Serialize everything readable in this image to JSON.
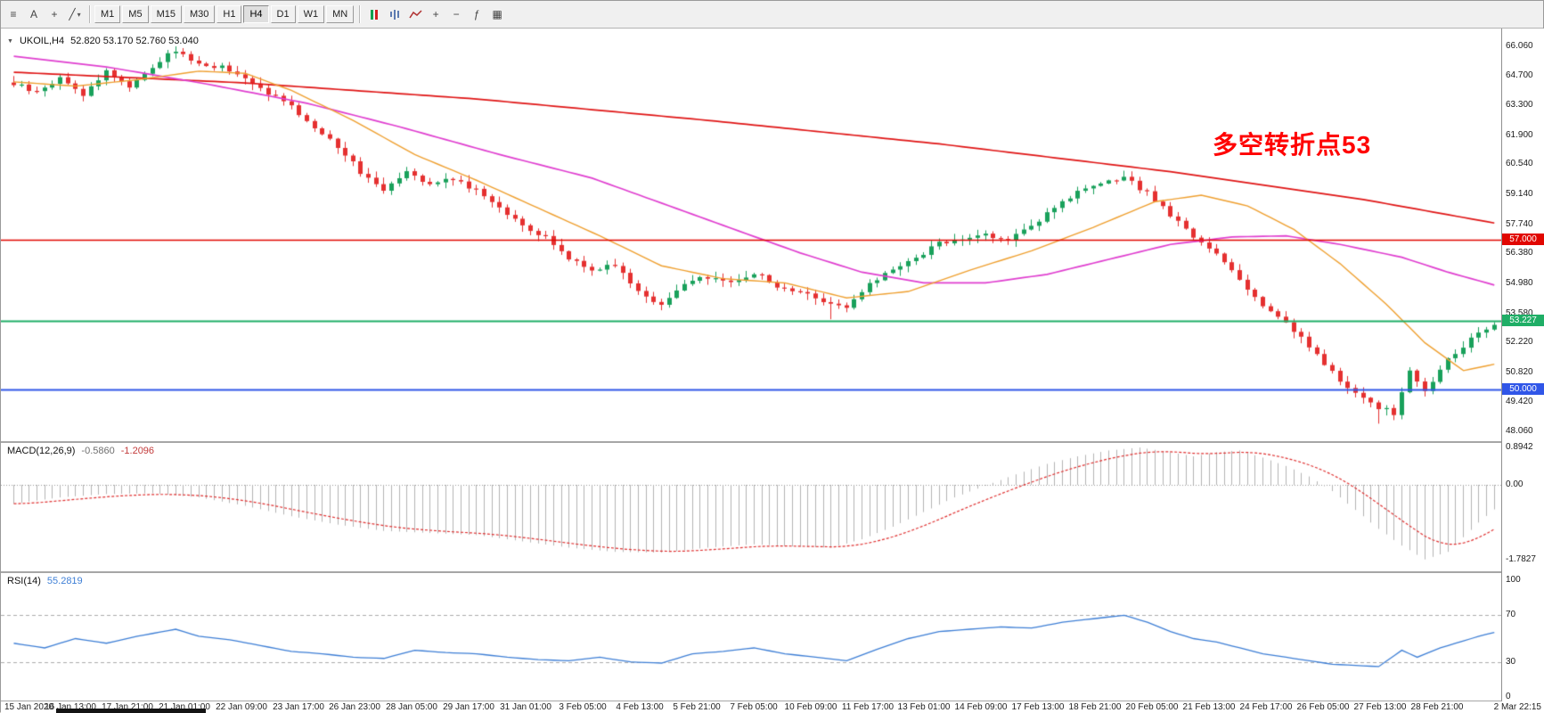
{
  "toolbar": {
    "left_icons": [
      {
        "name": "menu-grid-icon",
        "glyph": "≡"
      },
      {
        "name": "text-tool-button",
        "glyph": "A"
      },
      {
        "name": "crosshair-tool-button",
        "glyph": "+"
      },
      {
        "name": "draw-tools-button",
        "glyph": "╱",
        "caret": "▾"
      }
    ],
    "timeframes": [
      "M1",
      "M5",
      "M15",
      "M30",
      "H1",
      "H4",
      "D1",
      "W1",
      "MN"
    ],
    "active_timeframe": "H4",
    "right_icons": [
      {
        "name": "candles-chart-icon",
        "shape": "candles"
      },
      {
        "name": "bar-chart-icon",
        "shape": "bars"
      },
      {
        "name": "line-chart-icon",
        "shape": "line"
      },
      {
        "name": "zoom-in-icon",
        "glyph": "+"
      },
      {
        "name": "zoom-out-icon",
        "glyph": "−"
      },
      {
        "name": "indicators-icon",
        "glyph": "ƒ"
      },
      {
        "name": "grid-icon",
        "glyph": "▦"
      }
    ]
  },
  "chart": {
    "symbol_period": "UKOIL,H4",
    "ohlc": "52.820 53.170 52.760 53.040",
    "collapse_glyph": "▼",
    "annotation": "多空转折点53"
  },
  "indicators": {
    "macd_label": "MACD(12,26,9)",
    "macd_main_value": "-0.5860",
    "macd_signal_value": "-1.2096",
    "rsi_label": "RSI(14)",
    "rsi_value": "55.2819"
  },
  "axes": {
    "price_labels": [
      "66.060",
      "64.700",
      "63.300",
      "61.900",
      "60.540",
      "59.140",
      "57.740",
      "56.380",
      "54.980",
      "53.580",
      "52.220",
      "50.820",
      "49.420",
      "48.060"
    ],
    "macd_labels": [
      "0.8942",
      "0.00",
      "-1.7827"
    ],
    "rsi_labels": [
      "100",
      "70",
      "30",
      "0"
    ],
    "time_labels": [
      "15 Jan 2020",
      "16 Jan 13:00",
      "17 Jan 21:00",
      "21 Jan 01:00",
      "22 Jan 09:00",
      "23 Jan 17:00",
      "26 Jan 23:00",
      "28 Jan 05:00",
      "29 Jan 17:00",
      "31 Jan 01:00",
      "3 Feb 05:00",
      "4 Feb 13:00",
      "5 Feb 21:00",
      "7 Feb 05:00",
      "10 Feb 09:00",
      "11 Feb 17:00",
      "13 Feb 01:00",
      "14 Feb 09:00",
      "17 Feb 13:00",
      "18 Feb 21:00",
      "20 Feb 05:00",
      "21 Feb 13:00",
      "24 Feb 17:00",
      "26 Feb 05:00",
      "27 Feb 13:00",
      "28 Feb 21:00",
      "2 Mar 22:15"
    ]
  },
  "levels": [
    {
      "name": "resistance-line",
      "tag": "57.000",
      "price": 57.0,
      "color": "#e10600",
      "width": 1.4
    },
    {
      "name": "current-price-line",
      "tag": "53.227",
      "price": 53.227,
      "color": "#1fae66",
      "width": 2
    },
    {
      "name": "support-line",
      "tag": "50.000",
      "price": 50.0,
      "color": "#3056e8",
      "width": 2
    }
  ],
  "colors": {
    "up": "#19a15b",
    "down": "#e53030",
    "ma_slow": "#e01515",
    "ma_mid": "#e03fd0",
    "ma_fast": "#efa030",
    "macd_hist": "#b4b4b4",
    "macd_signal": "#e03030",
    "rsi": "#3e7fd6",
    "annotation": "#ff0000"
  },
  "chart_data": {
    "type": "candlestick",
    "symbol": "UKOIL",
    "timeframe": "H4",
    "bars": 193,
    "price_range": [
      48.06,
      66.06
    ],
    "last_bar": {
      "open": 52.82,
      "high": 53.17,
      "low": 52.76,
      "close": 53.04
    },
    "close_anchors": [
      [
        0,
        64.3
      ],
      [
        3,
        63.9
      ],
      [
        6,
        64.6
      ],
      [
        9,
        63.8
      ],
      [
        12,
        64.9
      ],
      [
        15,
        64.2
      ],
      [
        18,
        65.1
      ],
      [
        21,
        65.9
      ],
      [
        24,
        65.2
      ],
      [
        27,
        65.1
      ],
      [
        30,
        64.5
      ],
      [
        33,
        63.9
      ],
      [
        36,
        63.2
      ],
      [
        39,
        62.3
      ],
      [
        42,
        61.4
      ],
      [
        45,
        60.2
      ],
      [
        48,
        59.4
      ],
      [
        51,
        60.3
      ],
      [
        54,
        59.6
      ],
      [
        57,
        59.9
      ],
      [
        60,
        59.3
      ],
      [
        63,
        58.6
      ],
      [
        66,
        57.6
      ],
      [
        69,
        57.1
      ],
      [
        72,
        56.2
      ],
      [
        75,
        55.6
      ],
      [
        78,
        55.9
      ],
      [
        81,
        54.6
      ],
      [
        84,
        54.0
      ],
      [
        87,
        54.9
      ],
      [
        90,
        55.3
      ],
      [
        93,
        55.0
      ],
      [
        96,
        55.5
      ],
      [
        99,
        54.8
      ],
      [
        102,
        54.6
      ],
      [
        105,
        54.2
      ],
      [
        108,
        53.8
      ],
      [
        111,
        54.9
      ],
      [
        114,
        55.7
      ],
      [
        117,
        56.1
      ],
      [
        120,
        56.9
      ],
      [
        123,
        57.0
      ],
      [
        126,
        57.3
      ],
      [
        129,
        57.0
      ],
      [
        132,
        57.6
      ],
      [
        135,
        58.6
      ],
      [
        138,
        59.2
      ],
      [
        141,
        59.6
      ],
      [
        144,
        59.9
      ],
      [
        147,
        59.2
      ],
      [
        150,
        58.2
      ],
      [
        153,
        57.1
      ],
      [
        156,
        56.4
      ],
      [
        159,
        55.2
      ],
      [
        162,
        53.9
      ],
      [
        165,
        53.2
      ],
      [
        168,
        52.0
      ],
      [
        171,
        50.8
      ],
      [
        174,
        49.8
      ],
      [
        177,
        49.2
      ],
      [
        179,
        48.9
      ],
      [
        181,
        50.9
      ],
      [
        183,
        49.9
      ],
      [
        186,
        51.4
      ],
      [
        189,
        52.4
      ],
      [
        191,
        52.82
      ],
      [
        192,
        53.04
      ]
    ],
    "wick_overrides": {
      "high": {
        "21": 66.06
      },
      "low": {
        "106": 53.3,
        "177": 48.42
      }
    },
    "series": [
      {
        "name": "MA-slow",
        "color": "#e01515",
        "anchors": [
          [
            0,
            64.85
          ],
          [
            30,
            64.35
          ],
          [
            60,
            63.6
          ],
          [
            90,
            62.6
          ],
          [
            120,
            61.5
          ],
          [
            150,
            60.2
          ],
          [
            175,
            58.9
          ],
          [
            192,
            57.8
          ]
        ]
      },
      {
        "name": "MA-mid",
        "color": "#e03fd0",
        "anchors": [
          [
            0,
            65.6
          ],
          [
            12,
            65.1
          ],
          [
            25,
            64.3
          ],
          [
            38,
            63.4
          ],
          [
            50,
            62.3
          ],
          [
            63,
            61.0
          ],
          [
            75,
            59.9
          ],
          [
            85,
            58.6
          ],
          [
            95,
            57.3
          ],
          [
            102,
            56.4
          ],
          [
            110,
            55.5
          ],
          [
            118,
            55.0
          ],
          [
            126,
            55.0
          ],
          [
            134,
            55.4
          ],
          [
            142,
            56.1
          ],
          [
            150,
            56.8
          ],
          [
            158,
            57.15
          ],
          [
            165,
            57.2
          ],
          [
            172,
            56.8
          ],
          [
            180,
            56.2
          ],
          [
            186,
            55.5
          ],
          [
            192,
            54.9
          ]
        ]
      },
      {
        "name": "MA-fast",
        "color": "#efa030",
        "anchors": [
          [
            0,
            64.4
          ],
          [
            8,
            64.2
          ],
          [
            16,
            64.5
          ],
          [
            24,
            64.9
          ],
          [
            30,
            64.8
          ],
          [
            36,
            64.0
          ],
          [
            44,
            62.6
          ],
          [
            52,
            61.0
          ],
          [
            60,
            59.8
          ],
          [
            68,
            58.5
          ],
          [
            76,
            57.2
          ],
          [
            84,
            55.8
          ],
          [
            92,
            55.2
          ],
          [
            100,
            55.0
          ],
          [
            108,
            54.3
          ],
          [
            116,
            54.6
          ],
          [
            124,
            55.6
          ],
          [
            132,
            56.5
          ],
          [
            140,
            57.6
          ],
          [
            148,
            58.8
          ],
          [
            154,
            59.1
          ],
          [
            160,
            58.6
          ],
          [
            166,
            57.5
          ],
          [
            172,
            55.9
          ],
          [
            178,
            54.0
          ],
          [
            183,
            52.2
          ],
          [
            188,
            50.9
          ],
          [
            192,
            51.2
          ]
        ]
      }
    ],
    "macd": {
      "params": "12,26,9",
      "range": [
        -1.7827,
        0.8942
      ],
      "anchors": [
        [
          0,
          -0.45
        ],
        [
          6,
          -0.3
        ],
        [
          12,
          -0.22
        ],
        [
          18,
          -0.2
        ],
        [
          24,
          -0.3
        ],
        [
          30,
          -0.5
        ],
        [
          36,
          -0.75
        ],
        [
          42,
          -0.95
        ],
        [
          48,
          -1.1
        ],
        [
          54,
          -1.15
        ],
        [
          60,
          -1.2
        ],
        [
          66,
          -1.35
        ],
        [
          72,
          -1.5
        ],
        [
          78,
          -1.6
        ],
        [
          84,
          -1.62
        ],
        [
          90,
          -1.5
        ],
        [
          96,
          -1.42
        ],
        [
          102,
          -1.48
        ],
        [
          106,
          -1.5
        ],
        [
          110,
          -1.3
        ],
        [
          114,
          -1.0
        ],
        [
          118,
          -0.65
        ],
        [
          122,
          -0.3
        ],
        [
          126,
          -0.02
        ],
        [
          130,
          0.25
        ],
        [
          134,
          0.5
        ],
        [
          138,
          0.68
        ],
        [
          142,
          0.82
        ],
        [
          146,
          0.89
        ],
        [
          150,
          0.78
        ],
        [
          153,
          0.68
        ],
        [
          156,
          0.78
        ],
        [
          159,
          0.82
        ],
        [
          162,
          0.65
        ],
        [
          165,
          0.45
        ],
        [
          168,
          0.2
        ],
        [
          171,
          -0.15
        ],
        [
          174,
          -0.6
        ],
        [
          177,
          -1.05
        ],
        [
          180,
          -1.45
        ],
        [
          183,
          -1.78
        ],
        [
          186,
          -1.6
        ],
        [
          188,
          -1.25
        ],
        [
          190,
          -0.9
        ],
        [
          192,
          -0.586
        ]
      ]
    },
    "rsi": {
      "period": 14,
      "range": [
        0,
        100
      ],
      "levels": [
        70,
        30
      ],
      "anchors": [
        [
          0,
          46
        ],
        [
          4,
          42
        ],
        [
          8,
          50
        ],
        [
          12,
          46
        ],
        [
          16,
          52
        ],
        [
          21,
          58
        ],
        [
          24,
          52
        ],
        [
          28,
          49
        ],
        [
          32,
          44
        ],
        [
          36,
          39
        ],
        [
          40,
          37
        ],
        [
          44,
          34
        ],
        [
          48,
          33
        ],
        [
          52,
          40
        ],
        [
          56,
          38
        ],
        [
          60,
          37
        ],
        [
          64,
          34
        ],
        [
          68,
          32
        ],
        [
          72,
          31
        ],
        [
          76,
          34
        ],
        [
          80,
          30
        ],
        [
          84,
          29
        ],
        [
          88,
          37
        ],
        [
          92,
          39
        ],
        [
          96,
          42
        ],
        [
          100,
          37
        ],
        [
          104,
          34
        ],
        [
          108,
          31
        ],
        [
          112,
          41
        ],
        [
          116,
          50
        ],
        [
          120,
          56
        ],
        [
          124,
          58
        ],
        [
          128,
          60
        ],
        [
          132,
          59
        ],
        [
          136,
          64
        ],
        [
          140,
          67
        ],
        [
          144,
          70
        ],
        [
          147,
          64
        ],
        [
          150,
          56
        ],
        [
          153,
          50
        ],
        [
          156,
          47
        ],
        [
          159,
          42
        ],
        [
          162,
          37
        ],
        [
          165,
          34
        ],
        [
          168,
          31
        ],
        [
          171,
          28
        ],
        [
          174,
          27
        ],
        [
          177,
          26
        ],
        [
          180,
          40
        ],
        [
          182,
          34
        ],
        [
          185,
          42
        ],
        [
          188,
          48
        ],
        [
          190,
          52
        ],
        [
          192,
          55.28
        ]
      ]
    }
  }
}
